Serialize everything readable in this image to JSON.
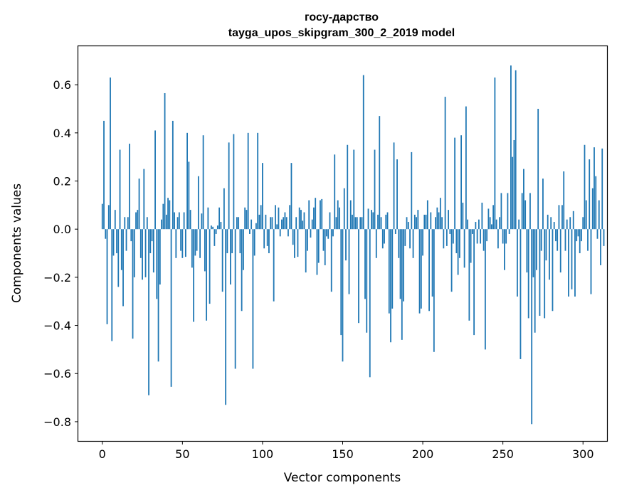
{
  "chart_data": {
    "type": "bar",
    "title": "госу-дарство",
    "subtitle": "tayga_upos_skipgram_300_2_2019 model",
    "xlabel": "Vector components",
    "ylabel": "Components values",
    "xlim": [
      -15,
      315
    ],
    "ylim": [
      -0.88,
      0.76
    ],
    "xticks": [
      0,
      50,
      100,
      150,
      200,
      250,
      300
    ],
    "xtick_labels": [
      "0",
      "50",
      "100",
      "150",
      "200",
      "250",
      "300"
    ],
    "yticks": [
      0.6,
      0.4,
      0.2,
      0.0,
      -0.2,
      -0.4,
      -0.6,
      -0.8
    ],
    "ytick_labels": [
      "0.6",
      "0.4",
      "0.2",
      "0.0",
      "−0.2",
      "−0.4",
      "−0.6",
      "−0.8"
    ],
    "bar_color": "#1f77b4",
    "grid": false,
    "values": [
      0.105,
      0.45,
      -0.04,
      -0.395,
      0.1,
      0.63,
      -0.465,
      -0.11,
      0.08,
      -0.1,
      -0.24,
      0.33,
      -0.17,
      -0.32,
      0.05,
      -0.09,
      0.05,
      0.355,
      -0.05,
      -0.455,
      -0.2,
      0.07,
      0.08,
      0.21,
      -0.12,
      -0.21,
      0.25,
      -0.2,
      0.05,
      -0.69,
      -0.1,
      -0.05,
      -0.18,
      0.41,
      -0.29,
      -0.55,
      -0.23,
      0.04,
      0.105,
      0.565,
      0.06,
      0.13,
      0.12,
      -0.655,
      0.45,
      0.07,
      -0.12,
      0.05,
      0.07,
      -0.09,
      -0.12,
      0.07,
      -0.115,
      0.4,
      0.28,
      0.08,
      -0.16,
      -0.385,
      -0.11,
      -0.09,
      0.22,
      -0.12,
      0.065,
      0.39,
      -0.175,
      -0.38,
      0.09,
      -0.31,
      0.015,
      0.01,
      -0.07,
      -0.02,
      0.015,
      0.09,
      0.03,
      -0.26,
      0.17,
      -0.73,
      -0.1,
      0.36,
      -0.23,
      -0.1,
      0.395,
      -0.58,
      0.05,
      0.05,
      -0.1,
      -0.34,
      -0.17,
      0.09,
      0.08,
      0.4,
      -0.02,
      0.04,
      -0.58,
      -0.11,
      0.025,
      0.4,
      0.06,
      0.1,
      0.275,
      -0.08,
      0.06,
      -0.07,
      -0.1,
      0.05,
      0.05,
      -0.3,
      0.1,
      0.02,
      0.09,
      -0.03,
      0.04,
      0.05,
      0.07,
      0.05,
      -0.03,
      0.1,
      0.275,
      -0.065,
      -0.12,
      0.05,
      -0.115,
      0.09,
      0.08,
      0.035,
      0.07,
      -0.18,
      -0.09,
      0.12,
      -0.035,
      0.04,
      0.09,
      0.13,
      -0.19,
      -0.14,
      0.12,
      0.125,
      -0.09,
      -0.15,
      -0.03,
      -0.04,
      0.07,
      -0.26,
      -0.03,
      0.31,
      0.05,
      0.12,
      0.09,
      -0.44,
      -0.55,
      0.17,
      -0.13,
      0.35,
      -0.27,
      0.12,
      0.06,
      0.33,
      0.05,
      0.05,
      -0.39,
      0.05,
      0.05,
      0.64,
      -0.29,
      -0.43,
      0.085,
      -0.615,
      0.08,
      0.07,
      0.33,
      -0.12,
      0.06,
      0.47,
      0.05,
      -0.08,
      -0.06,
      0.06,
      0.07,
      -0.35,
      -0.47,
      -0.33,
      0.36,
      -0.02,
      0.29,
      -0.12,
      -0.29,
      -0.46,
      -0.3,
      -0.07,
      0.05,
      0.03,
      -0.08,
      0.32,
      -0.12,
      0.06,
      0.05,
      0.08,
      -0.35,
      -0.33,
      -0.11,
      0.06,
      0.06,
      0.12,
      -0.34,
      0.07,
      -0.28,
      -0.51,
      0.05,
      0.09,
      0.07,
      0.13,
      0.05,
      -0.08,
      0.55,
      -0.07,
      0.08,
      -0.02,
      -0.26,
      -0.06,
      0.38,
      -0.1,
      -0.19,
      -0.12,
      0.39,
      0.11,
      -0.16,
      0.51,
      0.04,
      -0.38,
      -0.14,
      -0.02,
      -0.44,
      0.03,
      -0.06,
      0.04,
      -0.06,
      0.11,
      -0.09,
      -0.5,
      -0.05,
      0.085,
      0.05,
      0.02,
      0.1,
      0.63,
      0.04,
      -0.08,
      0.05,
      0.15,
      -0.06,
      -0.17,
      -0.06,
      0.15,
      -0.02,
      0.68,
      0.3,
      0.37,
      0.66,
      -0.28,
      0.04,
      -0.54,
      0.15,
      0.25,
      0.12,
      -0.18,
      -0.37,
      0.15,
      -0.81,
      -0.2,
      -0.43,
      -0.17,
      0.5,
      -0.36,
      -0.09,
      0.21,
      -0.37,
      -0.13,
      0.06,
      -0.21,
      0.05,
      -0.34,
      0.03,
      -0.05,
      -0.09,
      0.1,
      -0.18,
      0.1,
      0.24,
      -0.09,
      0.04,
      -0.28,
      0.05,
      -0.25,
      0.075,
      -0.28,
      -0.05,
      -0.03,
      -0.1,
      -0.05,
      0.05,
      0.35,
      0.12,
      -0.09,
      0.29,
      -0.27,
      0.17,
      0.34,
      0.22,
      -0.04,
      0.12,
      -0.15,
      0.335,
      -0.07
    ]
  }
}
